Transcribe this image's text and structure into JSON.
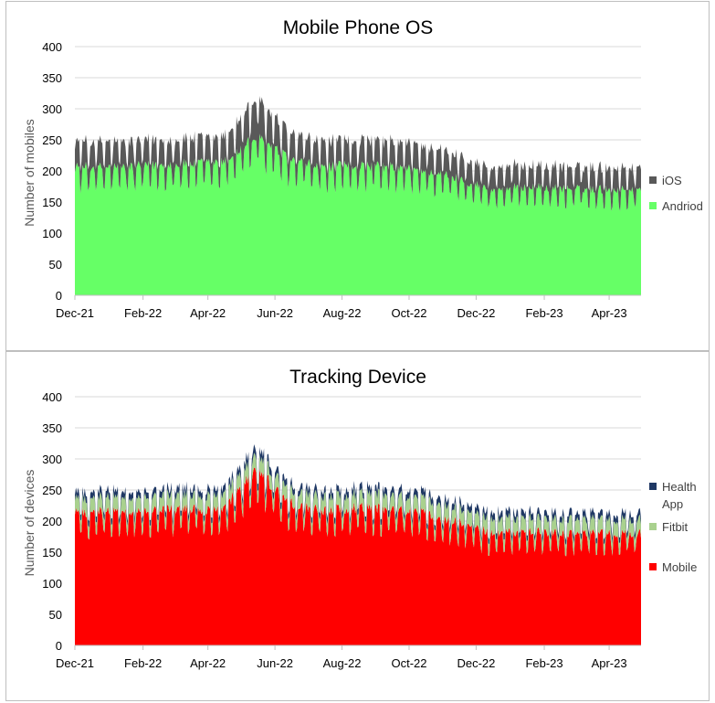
{
  "chart_data": [
    {
      "type": "area",
      "stacked": true,
      "title": "Mobile Phone OS",
      "xlabel": "",
      "ylabel": "Number of mobiles",
      "ylim": [
        0,
        400
      ],
      "y_ticks": [
        "0",
        "50",
        "100",
        "150",
        "200",
        "250",
        "300",
        "350",
        "400"
      ],
      "x_ticks": [
        "Dec-21",
        "Feb-22",
        "Apr-22",
        "Jun-22",
        "Aug-22",
        "Oct-22",
        "Dec-22",
        "Feb-23",
        "Apr-23"
      ],
      "x_range": [
        "2021-12-01",
        "2023-04-30"
      ],
      "grid": true,
      "legend_position": "right",
      "series": [
        {
          "name": "Andriod",
          "color": "#66ff66",
          "monthly_values": [
            {
              "month": "2021-12",
              "value": 200
            },
            {
              "month": "2022-01",
              "value": 200
            },
            {
              "month": "2022-02",
              "value": 203
            },
            {
              "month": "2022-03",
              "value": 205
            },
            {
              "month": "2022-04",
              "value": 207
            },
            {
              "month": "2022-05",
              "value": 248
            },
            {
              "month": "2022-06",
              "value": 210
            },
            {
              "month": "2022-07",
              "value": 200
            },
            {
              "month": "2022-08",
              "value": 203
            },
            {
              "month": "2022-09",
              "value": 200
            },
            {
              "month": "2022-10",
              "value": 195
            },
            {
              "month": "2022-11",
              "value": 183
            },
            {
              "month": "2022-12",
              "value": 165
            },
            {
              "month": "2023-01",
              "value": 170
            },
            {
              "month": "2023-02",
              "value": 167
            },
            {
              "month": "2023-03",
              "value": 166
            },
            {
              "month": "2023-04",
              "value": 165
            }
          ]
        },
        {
          "name": "iOS",
          "color": "#595959",
          "monthly_values": [
            {
              "month": "2021-12",
              "value": 40
            },
            {
              "month": "2022-01",
              "value": 40
            },
            {
              "month": "2022-02",
              "value": 40
            },
            {
              "month": "2022-03",
              "value": 40
            },
            {
              "month": "2022-04",
              "value": 40
            },
            {
              "month": "2022-05",
              "value": 60
            },
            {
              "month": "2022-06",
              "value": 42
            },
            {
              "month": "2022-07",
              "value": 40
            },
            {
              "month": "2022-08",
              "value": 40
            },
            {
              "month": "2022-09",
              "value": 40
            },
            {
              "month": "2022-10",
              "value": 40
            },
            {
              "month": "2022-11",
              "value": 37
            },
            {
              "month": "2022-12",
              "value": 35
            },
            {
              "month": "2023-01",
              "value": 35
            },
            {
              "month": "2023-02",
              "value": 35
            },
            {
              "month": "2023-03",
              "value": 35
            },
            {
              "month": "2023-04",
              "value": 35
            }
          ]
        }
      ]
    },
    {
      "type": "area",
      "stacked": true,
      "title": "Tracking Device",
      "xlabel": "",
      "ylabel": "Number of devices",
      "ylim": [
        0,
        400
      ],
      "y_ticks": [
        "0",
        "50",
        "100",
        "150",
        "200",
        "250",
        "300",
        "350",
        "400"
      ],
      "x_ticks": [
        "Dec-21",
        "Feb-22",
        "Apr-22",
        "Jun-22",
        "Aug-22",
        "Oct-22",
        "Dec-22",
        "Feb-23",
        "Apr-23"
      ],
      "x_range": [
        "2021-12-01",
        "2023-04-30"
      ],
      "grid": true,
      "legend_position": "right",
      "series": [
        {
          "name": "Mobile",
          "color": "#ff0000",
          "monthly_values": [
            {
              "month": "2021-12",
              "value": 208
            },
            {
              "month": "2022-01",
              "value": 210
            },
            {
              "month": "2022-02",
              "value": 212
            },
            {
              "month": "2022-03",
              "value": 213
            },
            {
              "month": "2022-04",
              "value": 215
            },
            {
              "month": "2022-05",
              "value": 275
            },
            {
              "month": "2022-06",
              "value": 222
            },
            {
              "month": "2022-07",
              "value": 212
            },
            {
              "month": "2022-08",
              "value": 215
            },
            {
              "month": "2022-09",
              "value": 212
            },
            {
              "month": "2022-10",
              "value": 207
            },
            {
              "month": "2022-11",
              "value": 193
            },
            {
              "month": "2022-12",
              "value": 175
            },
            {
              "month": "2023-01",
              "value": 178
            },
            {
              "month": "2023-02",
              "value": 176
            },
            {
              "month": "2023-03",
              "value": 175
            },
            {
              "month": "2023-04",
              "value": 175
            }
          ]
        },
        {
          "name": "Fitbit",
          "color": "#a9d18e",
          "monthly_values": [
            {
              "month": "2021-12",
              "value": 22
            },
            {
              "month": "2022-01",
              "value": 22
            },
            {
              "month": "2022-02",
              "value": 22
            },
            {
              "month": "2022-03",
              "value": 22
            },
            {
              "month": "2022-04",
              "value": 22
            },
            {
              "month": "2022-05",
              "value": 22
            },
            {
              "month": "2022-06",
              "value": 22
            },
            {
              "month": "2022-07",
              "value": 22
            },
            {
              "month": "2022-08",
              "value": 22
            },
            {
              "month": "2022-09",
              "value": 22
            },
            {
              "month": "2022-10",
              "value": 22
            },
            {
              "month": "2022-11",
              "value": 22
            },
            {
              "month": "2022-12",
              "value": 22
            },
            {
              "month": "2023-01",
              "value": 22
            },
            {
              "month": "2023-02",
              "value": 22
            },
            {
              "month": "2023-03",
              "value": 22
            },
            {
              "month": "2023-04",
              "value": 22
            }
          ]
        },
        {
          "name": "Health App",
          "color": "#1f3864",
          "monthly_values": [
            {
              "month": "2021-12",
              "value": 10
            },
            {
              "month": "2022-01",
              "value": 10
            },
            {
              "month": "2022-02",
              "value": 10
            },
            {
              "month": "2022-03",
              "value": 10
            },
            {
              "month": "2022-04",
              "value": 10
            },
            {
              "month": "2022-05",
              "value": 12
            },
            {
              "month": "2022-06",
              "value": 10
            },
            {
              "month": "2022-07",
              "value": 10
            },
            {
              "month": "2022-08",
              "value": 10
            },
            {
              "month": "2022-09",
              "value": 10
            },
            {
              "month": "2022-10",
              "value": 10
            },
            {
              "month": "2022-11",
              "value": 10
            },
            {
              "month": "2022-12",
              "value": 10
            },
            {
              "month": "2023-01",
              "value": 10
            },
            {
              "month": "2023-02",
              "value": 10
            },
            {
              "month": "2023-03",
              "value": 10
            },
            {
              "month": "2023-04",
              "value": 10
            }
          ]
        }
      ]
    }
  ]
}
